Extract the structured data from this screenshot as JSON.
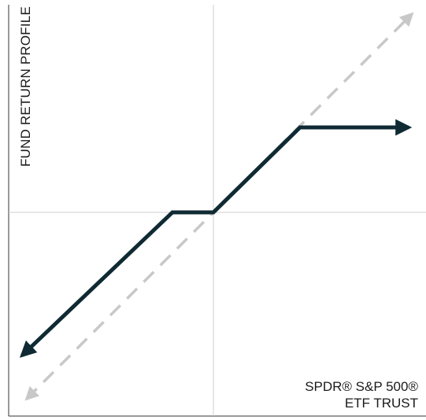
{
  "diagram": {
    "y_axis_title": "FUND RETURN PROFILE",
    "x_axis_title_line1": "SPDR® S&P 500®",
    "x_axis_title_line2": "ETF TRUST",
    "colors": {
      "fund_line": "#0f2a33",
      "reference_line": "#c8c8c8",
      "axes": "#cfcfcf",
      "frame": "#333333"
    }
  }
}
